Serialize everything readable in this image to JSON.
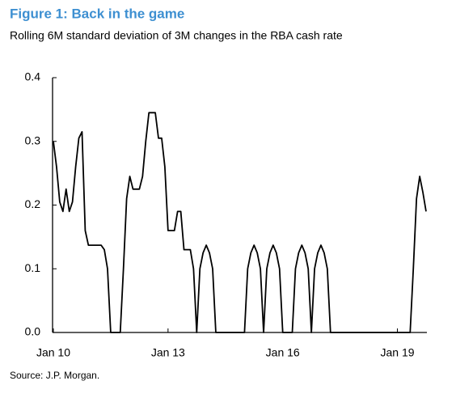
{
  "chart_data": {
    "type": "line",
    "title": "Figure 1: Back in the game",
    "subtitle": "Rolling 6M standard deviation of 3M changes in the RBA cash rate",
    "source": "Source: J.P. Morgan.",
    "categories": [
      "Jan 10",
      null,
      null,
      null,
      null,
      null,
      null,
      null,
      null,
      null,
      null,
      null,
      null,
      null,
      null,
      null,
      null,
      null,
      null,
      null,
      null,
      null,
      null,
      null,
      null,
      null,
      null,
      null,
      null,
      null,
      null,
      null,
      null,
      null,
      null,
      null,
      "Jan 13",
      null,
      null,
      null,
      null,
      null,
      null,
      null,
      null,
      null,
      null,
      null,
      null,
      null,
      null,
      null,
      null,
      null,
      null,
      null,
      null,
      null,
      null,
      null,
      null,
      null,
      null,
      null,
      null,
      null,
      null,
      null,
      null,
      null,
      null,
      null,
      "Jan 16",
      null,
      null,
      null,
      null,
      null,
      null,
      null,
      null,
      null,
      null,
      null,
      null,
      null,
      null,
      null,
      null,
      null,
      null,
      null,
      null,
      null,
      null,
      null,
      null,
      null,
      null,
      null,
      null,
      null,
      null,
      null,
      null,
      null,
      null,
      null,
      "Jan 19",
      null,
      null,
      null,
      null,
      null,
      null,
      null,
      null,
      null
    ],
    "series": [
      {
        "color": "#000000",
        "values": [
          0.3,
          0.26,
          0.205,
          0.19,
          0.225,
          0.19,
          0.205,
          0.26,
          0.305,
          0.315,
          0.16,
          0.137,
          0.137,
          0.137,
          0.137,
          0.137,
          0.13,
          0.1,
          0,
          0,
          0,
          0,
          0.1,
          0.21,
          0.245,
          0.225,
          0.225,
          0.225,
          0.245,
          0.3,
          0.345,
          0.345,
          0.345,
          0.305,
          0.305,
          0.26,
          0.16,
          0.16,
          0.16,
          0.19,
          0.19,
          0.13,
          0.13,
          0.13,
          0.1,
          0,
          0.1,
          0.125,
          0.137,
          0.125,
          0.1,
          0,
          0,
          0,
          0,
          0,
          0,
          0,
          0,
          0,
          0,
          0.1,
          0.125,
          0.137,
          0.125,
          0.1,
          0,
          0.1,
          0.125,
          0.137,
          0.125,
          0.1,
          0,
          0,
          0,
          0,
          0.1,
          0.125,
          0.137,
          0.125,
          0.1,
          0,
          0.1,
          0.125,
          0.137,
          0.125,
          0.1,
          0,
          0,
          0,
          0,
          0,
          0,
          0,
          0,
          0,
          0,
          0,
          0,
          0,
          0,
          0,
          0,
          0,
          0,
          0,
          0,
          0,
          0,
          0,
          0,
          0,
          0,
          0.1,
          0.21,
          0.245,
          0.22,
          0.19
        ]
      }
    ],
    "ylim": [
      0,
      0.4
    ],
    "yticks": [
      {
        "value": 0,
        "label": "0.0"
      },
      0.1,
      0.2,
      0.3,
      0.4
    ]
  }
}
